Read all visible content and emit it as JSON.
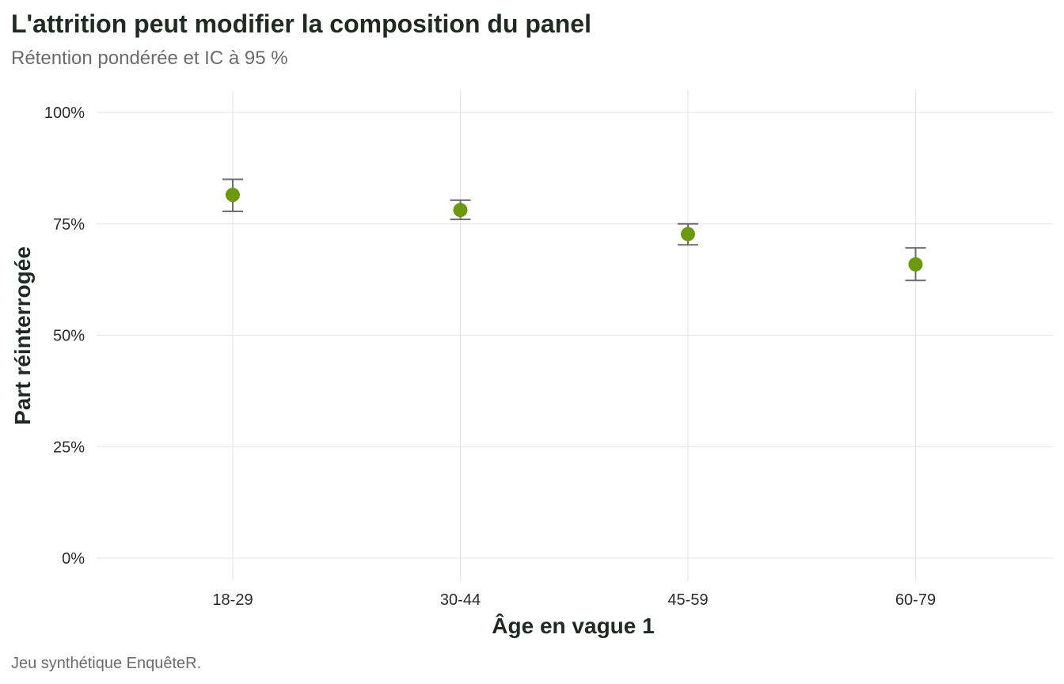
{
  "chart_data": {
    "type": "scatter",
    "title": "L'attrition peut modifier la composition du panel",
    "subtitle": "Rétention pondérée et IC à 95 %",
    "caption": "Jeu synthétique EnquêteR.",
    "xlabel": "Âge en vague 1",
    "ylabel": "Part réinterrogée",
    "categories": [
      "18-29",
      "30-44",
      "45-59",
      "60-79"
    ],
    "values": [
      0.815,
      0.781,
      0.727,
      0.659
    ],
    "ci_low": [
      0.778,
      0.76,
      0.703,
      0.623
    ],
    "ci_high": [
      0.85,
      0.803,
      0.75,
      0.696
    ],
    "ylim": [
      0,
      1
    ],
    "yticks": [
      0,
      0.25,
      0.5,
      0.75,
      1.0
    ],
    "ytick_labels": [
      "0%",
      "25%",
      "50%",
      "75%",
      "100%"
    ],
    "grid": true,
    "legend": "none",
    "point_color": "#6a9a0c",
    "errorbar_color": "#6e6e6e"
  }
}
